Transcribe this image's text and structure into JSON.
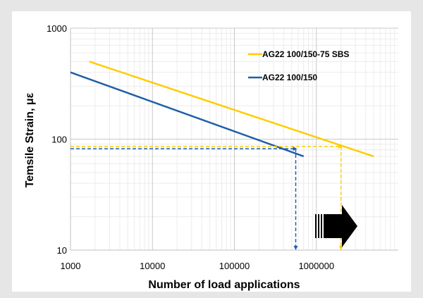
{
  "chart_data": {
    "type": "line",
    "scale": {
      "x": "log",
      "y": "log"
    },
    "xlim": [
      1000,
      10000000
    ],
    "ylim": [
      10,
      1000
    ],
    "xlabel": "Number of load applications",
    "ylabel": "Temsile Strain, με",
    "x_ticks": [
      "1000",
      "10000",
      "100000",
      "1000000"
    ],
    "y_ticks": [
      "1000",
      "100",
      "10"
    ],
    "grid": true,
    "legend_position": "top-right",
    "series": [
      {
        "name": "AG22 100/150-75 SBS",
        "color": "#FFCC00",
        "points": [
          {
            "x": 1700,
            "y": 500
          },
          {
            "x": 5000000,
            "y": 70
          }
        ]
      },
      {
        "name": "AG22 100/150",
        "color": "#1F5FA8",
        "points": [
          {
            "x": 1000,
            "y": 400
          },
          {
            "x": 700000,
            "y": 70
          }
        ]
      }
    ],
    "reference_lines": [
      {
        "series": "AG22 100/150-75 SBS",
        "strain": 86,
        "cycles": 2000000,
        "color": "#FFCC00"
      },
      {
        "series": "AG22 100/150",
        "strain": 82,
        "cycles": 560000,
        "color": "#1F5FA8"
      }
    ],
    "annotation": {
      "type": "arrow",
      "shape": "right-arrow",
      "color": "#000000"
    }
  }
}
